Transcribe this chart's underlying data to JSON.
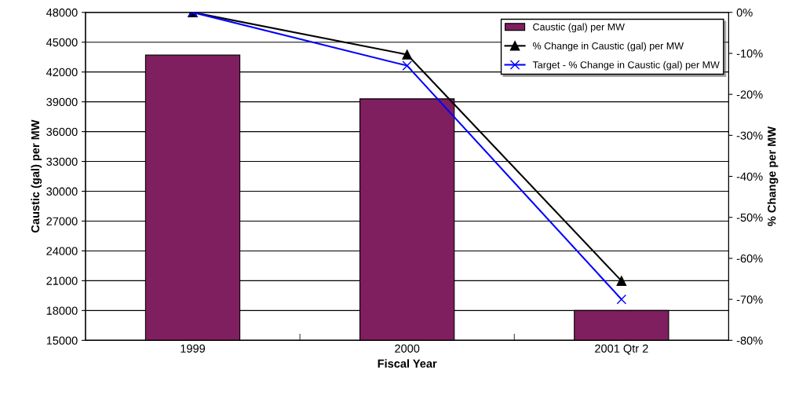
{
  "chart_data": {
    "type": "bar",
    "xlabel": "Fiscal Year",
    "ylabel": "Caustic (gal) per MW",
    "y2label": "% Change per MW",
    "categories": [
      "1999",
      "2000",
      "2001 Qtr 2"
    ],
    "series": [
      {
        "name": "Caustic (gal) per MW",
        "color": "#7f1f5f",
        "values": [
          43700,
          39300,
          18000
        ]
      },
      {
        "name": "% Change in Caustic (gal) per MW",
        "type": "line",
        "axis": "y2",
        "color": "#000000",
        "marker": "triangle",
        "values": [
          0,
          -10.3,
          -65.5
        ]
      },
      {
        "name": "Target - % Change in Caustic (gal) per MW",
        "type": "line",
        "axis": "y2",
        "color": "#0000ff",
        "marker": "cross",
        "values": [
          0,
          -13,
          -70
        ]
      }
    ],
    "ylim": [
      15000,
      48000
    ],
    "yticks": [
      15000,
      18000,
      21000,
      24000,
      27000,
      30000,
      33000,
      36000,
      39000,
      42000,
      45000,
      48000
    ],
    "y2lim": [
      -80,
      0
    ],
    "y2ticks": [
      {
        "value": -80,
        "label": "-80%"
      },
      {
        "value": -70,
        "label": "-70%"
      },
      {
        "value": -60,
        "label": "-60%"
      },
      {
        "value": -50,
        "label": "-50%"
      },
      {
        "value": -40,
        "label": "-40%"
      },
      {
        "value": -30,
        "label": "-30%"
      },
      {
        "value": -20,
        "label": "-20%"
      },
      {
        "value": -10,
        "label": "-10%"
      },
      {
        "value": 0,
        "label": "0%"
      }
    ],
    "grid": "y",
    "legend": "top right"
  }
}
